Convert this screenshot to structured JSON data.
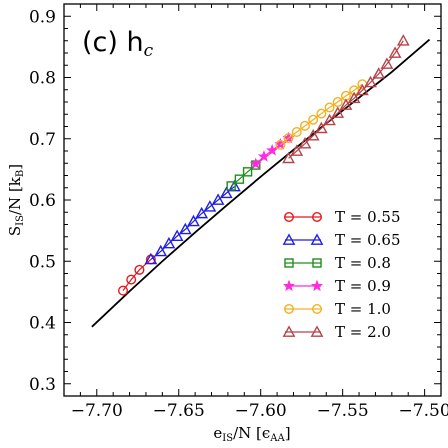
{
  "chart_data": {
    "type": "scatter",
    "panel_label": "(c) h",
    "panel_label_sub": "c",
    "xlabel": "e",
    "xlabel_sub": "IS",
    "xlabel_rest": "/N [ϵ",
    "xlabel_unit_sub": "AA",
    "xlabel_close": "]",
    "ylabel": "S",
    "ylabel_sub": "IS",
    "ylabel_rest": "/N [k",
    "ylabel_unit_sub": "B",
    "ylabel_close": "]",
    "xlim": [
      -7.72,
      -7.49
    ],
    "ylim": [
      0.28,
      0.92
    ],
    "x_ticks": [
      -7.7,
      -7.65,
      -7.6,
      -7.55,
      -7.5
    ],
    "x_tick_labels": [
      "−7.70",
      "−7.65",
      "−7.60",
      "−7.55",
      "−7.50"
    ],
    "y_ticks": [
      0.3,
      0.4,
      0.5,
      0.6,
      0.7,
      0.8,
      0.9
    ],
    "y_tick_labels": [
      "0.3",
      "0.4",
      "0.5",
      "0.6",
      "0.7",
      "0.8",
      "0.9"
    ],
    "legend_position": "bottom-right",
    "fit_line": {
      "color": "#000000",
      "x": [
        -7.703,
        -7.68,
        -7.66,
        -7.64,
        -7.62,
        -7.6,
        -7.58,
        -7.56,
        -7.54,
        -7.52,
        -7.497
      ],
      "y": [
        0.393,
        0.451,
        0.5,
        0.547,
        0.593,
        0.638,
        0.682,
        0.725,
        0.767,
        0.809,
        0.862
      ]
    },
    "series": [
      {
        "name": "T = 0.55",
        "color": "#e8171c",
        "marker": "circle",
        "x": [
          -7.684,
          -7.679,
          -7.674,
          -7.667
        ],
        "y": [
          0.452,
          0.47,
          0.486,
          0.503
        ]
      },
      {
        "name": "T = 0.65",
        "color": "#1f1fe6",
        "marker": "triangle",
        "x": [
          -7.667,
          -7.661,
          -7.656,
          -7.651,
          -7.646,
          -7.641,
          -7.636,
          -7.631,
          -7.626,
          -7.621,
          -7.616
        ],
        "y": [
          0.503,
          0.516,
          0.529,
          0.541,
          0.552,
          0.565,
          0.578,
          0.589,
          0.6,
          0.611,
          0.622
        ]
      },
      {
        "name": "T = 0.8",
        "color": "#1e8f1e",
        "marker": "square",
        "x": [
          -7.618,
          -7.613,
          -7.608,
          -7.603
        ],
        "y": [
          0.623,
          0.634,
          0.646,
          0.657
        ]
      },
      {
        "name": "T = 0.9",
        "color": "#ff2ae0",
        "marker": "star",
        "x": [
          -7.603,
          -7.598,
          -7.593,
          -7.588,
          -7.583
        ],
        "y": [
          0.659,
          0.671,
          0.681,
          0.691,
          0.701
        ]
      },
      {
        "name": "T = 1.0",
        "color": "#f5b020",
        "marker": "circle",
        "x": [
          -7.588,
          -7.583,
          -7.578,
          -7.573,
          -7.568,
          -7.563,
          -7.558,
          -7.553,
          -7.548,
          -7.543,
          -7.538
        ],
        "y": [
          0.69,
          0.701,
          0.711,
          0.721,
          0.731,
          0.741,
          0.751,
          0.76,
          0.77,
          0.779,
          0.789
        ]
      },
      {
        "name": "T = 2.0",
        "color": "#b5444a",
        "marker": "triangle",
        "x": [
          -7.583,
          -7.578,
          -7.573,
          -7.568,
          -7.563,
          -7.558,
          -7.553,
          -7.548,
          -7.543,
          -7.538,
          -7.533,
          -7.528,
          -7.523,
          -7.518,
          -7.513
        ],
        "y": [
          0.668,
          0.68,
          0.692,
          0.705,
          0.717,
          0.73,
          0.742,
          0.755,
          0.766,
          0.779,
          0.792,
          0.806,
          0.822,
          0.84,
          0.86
        ]
      }
    ]
  }
}
